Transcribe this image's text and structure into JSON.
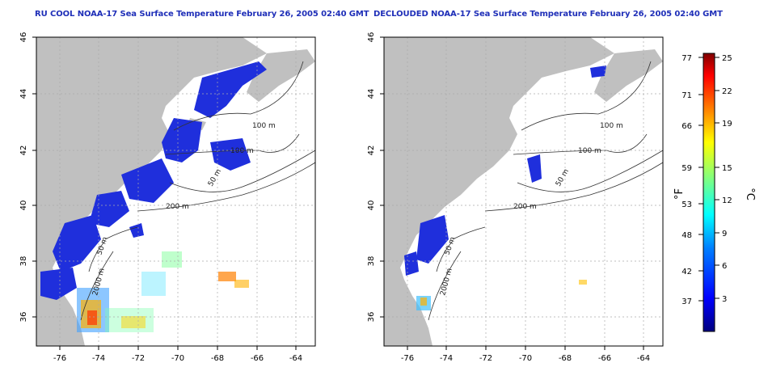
{
  "titles": {
    "left": "RU COOL NOAA-17 Sea Surface Temperature February 26, 2005 02:40 GMT",
    "right": "DECLOUDED NOAA-17 Sea Surface Temperature February 26, 2005 02:40 GMT"
  },
  "axes": {
    "lon_ticks": [
      "-76",
      "-74",
      "-72",
      "-70",
      "-68",
      "-66",
      "-64"
    ],
    "lat_ticks": [
      "46",
      "44",
      "42",
      "40",
      "38",
      "36"
    ]
  },
  "contour_labels": {
    "left": [
      "100 m",
      "100 m",
      "50 m",
      "200 m",
      "50 m",
      "2000 m"
    ],
    "right": [
      "100 m",
      "100 m",
      "50 m",
      "200 m",
      "50 m",
      "2000 m"
    ]
  },
  "colorbar": {
    "f_label": "°F",
    "c_label": "°C",
    "f_ticks": [
      "77",
      "71",
      "66",
      "59",
      "53",
      "48",
      "42",
      "37"
    ],
    "c_ticks": [
      "25",
      "22",
      "19",
      "15",
      "12",
      "9",
      "6",
      "3"
    ],
    "colors": [
      "#00007f",
      "#0000ff",
      "#0080ff",
      "#00ffff",
      "#80ff80",
      "#ffff00",
      "#ff8000",
      "#ff0000",
      "#7f0000"
    ]
  },
  "colors": {
    "land": "#c0c0c0",
    "cold_sst": "#1f2fdc",
    "title": "#1f2fb8"
  }
}
